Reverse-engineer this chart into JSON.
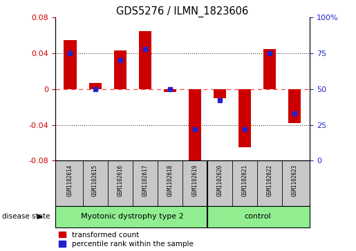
{
  "title": "GDS5276 / ILMN_1823606",
  "samples": [
    "GSM1102614",
    "GSM1102615",
    "GSM1102616",
    "GSM1102617",
    "GSM1102618",
    "GSM1102619",
    "GSM1102620",
    "GSM1102621",
    "GSM1102622",
    "GSM1102623"
  ],
  "red_values": [
    0.055,
    0.007,
    0.043,
    0.065,
    -0.003,
    -0.085,
    -0.01,
    -0.065,
    0.045,
    -0.038
  ],
  "blue_values_pct": [
    75,
    50,
    70,
    78,
    50,
    22,
    42,
    22,
    75,
    33
  ],
  "group_labels": [
    "Myotonic dystrophy type 2",
    "control"
  ],
  "group_split": 6,
  "group_color": "#90EE90",
  "label_bg_color": "#C8C8C8",
  "ylim_left": [
    -0.08,
    0.08
  ],
  "ylim_right": [
    0,
    100
  ],
  "yticks_left": [
    -0.08,
    -0.04,
    0.0,
    0.04,
    0.08
  ],
  "ytick_labels_left": [
    "-0.08",
    "-0.04",
    "0",
    "0.04",
    "0.08"
  ],
  "yticks_right": [
    0,
    25,
    50,
    75,
    100
  ],
  "ytick_labels_right": [
    "0",
    "25",
    "50",
    "75",
    "100%"
  ],
  "red_color": "#CC0000",
  "blue_color": "#2222CC",
  "bar_width": 0.5,
  "plot_bg": "#FFFFFF",
  "disease_state_label": "disease state",
  "legend_red": "transformed count",
  "legend_blue": "percentile rank within the sample",
  "dotted_grid_color": "#333333",
  "zero_line_color": "#FF4444"
}
